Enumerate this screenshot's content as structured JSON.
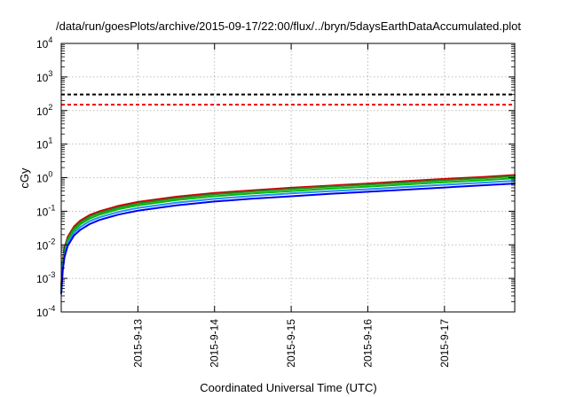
{
  "chart_data": {
    "type": "line",
    "title": "/data/run/goesPlots/archive/2015-09-17/22:00/flux/../bryn/5daysEarthDataAccumulated.plot",
    "xlabel": "Coordinated Universal Time (UTC)",
    "ylabel": "cGy",
    "x_start": "2015-09-12T00:00",
    "x_end": "2015-09-17T22:00",
    "xlim": [
      "2015-09-12T00:00",
      "2015-09-17T22:00"
    ],
    "x_ticks": [
      "2015-9-13",
      "2015-9-14",
      "2015-9-15",
      "2015-9-16",
      "2015-9-17"
    ],
    "y_scale": "log",
    "ylim": [
      0.0001,
      10000
    ],
    "y_ticks": [
      {
        "base": "10",
        "exp": "-4"
      },
      {
        "base": "10",
        "exp": "-3"
      },
      {
        "base": "10",
        "exp": "-2"
      },
      {
        "base": "10",
        "exp": "-1"
      },
      {
        "base": "10",
        "exp": "0"
      },
      {
        "base": "10",
        "exp": "1"
      },
      {
        "base": "10",
        "exp": "2"
      },
      {
        "base": "10",
        "exp": "3"
      },
      {
        "base": "10",
        "exp": "4"
      }
    ],
    "grid": true,
    "legend": "none",
    "x": [
      "2015-09-12T00:00",
      "2015-09-12T00:30",
      "2015-09-12T01:00",
      "2015-09-12T02:00",
      "2015-09-12T04:00",
      "2015-09-12T06:00",
      "2015-09-12T09:00",
      "2015-09-12T12:00",
      "2015-09-12T18:00",
      "2015-09-13T00:00",
      "2015-09-13T12:00",
      "2015-09-14T00:00",
      "2015-09-14T12:00",
      "2015-09-15T00:00",
      "2015-09-15T12:00",
      "2015-09-16T00:00",
      "2015-09-16T12:00",
      "2015-09-17T00:00",
      "2015-09-17T12:00",
      "2015-09-17T22:00"
    ],
    "series": [
      {
        "color": "#cc0000",
        "values": [
          0.0006,
          0.0035,
          0.008,
          0.017,
          0.035,
          0.053,
          0.078,
          0.1,
          0.145,
          0.19,
          0.27,
          0.35,
          0.42,
          0.5,
          0.58,
          0.67,
          0.79,
          0.92,
          1.05,
          1.2
        ]
      },
      {
        "color": "#228b22",
        "values": [
          0.0005,
          0.003,
          0.007,
          0.015,
          0.031,
          0.047,
          0.07,
          0.09,
          0.13,
          0.17,
          0.245,
          0.32,
          0.39,
          0.46,
          0.54,
          0.62,
          0.72,
          0.84,
          0.96,
          1.1
        ]
      },
      {
        "color": "#00bb00",
        "values": [
          0.00045,
          0.0026,
          0.006,
          0.013,
          0.027,
          0.041,
          0.061,
          0.079,
          0.115,
          0.15,
          0.215,
          0.28,
          0.34,
          0.4,
          0.47,
          0.54,
          0.63,
          0.73,
          0.84,
          0.96
        ]
      },
      {
        "color": "#1e90ff",
        "values": [
          0.0004,
          0.0022,
          0.005,
          0.011,
          0.023,
          0.034,
          0.051,
          0.066,
          0.096,
          0.125,
          0.18,
          0.235,
          0.285,
          0.34,
          0.395,
          0.455,
          0.53,
          0.615,
          0.71,
          0.81
        ]
      },
      {
        "color": "#0000ee",
        "values": [
          0.00035,
          0.0018,
          0.0042,
          0.0092,
          0.019,
          0.028,
          0.042,
          0.055,
          0.08,
          0.104,
          0.15,
          0.195,
          0.237,
          0.28,
          0.33,
          0.38,
          0.44,
          0.51,
          0.59,
          0.67
        ]
      }
    ],
    "thresholds": [
      {
        "value": 300,
        "color": "#000000",
        "style": "dashed"
      },
      {
        "value": 150,
        "color": "#ee0000",
        "style": "dashed"
      }
    ]
  }
}
